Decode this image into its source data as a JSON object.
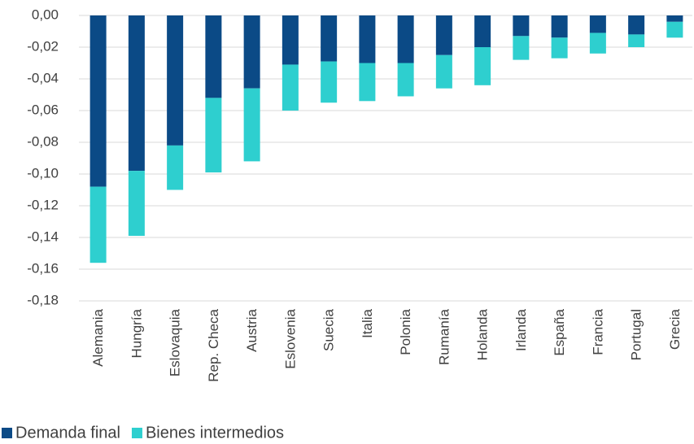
{
  "chart_data": {
    "type": "bar",
    "stacked": true,
    "categories": [
      "Alemania",
      "Hungría",
      "Eslovaquia",
      "Rep. Checa",
      "Austria",
      "Eslovenia",
      "Suecia",
      "Italia",
      "Polonia",
      "Rumanía",
      "Holanda",
      "Irlanda",
      "España",
      "Francia",
      "Portugal",
      "Grecia"
    ],
    "series": [
      {
        "name": "Demanda final",
        "color": "#0b4a86",
        "values": [
          -0.108,
          -0.098,
          -0.082,
          -0.052,
          -0.046,
          -0.031,
          -0.029,
          -0.03,
          -0.03,
          -0.025,
          -0.02,
          -0.013,
          -0.014,
          -0.011,
          -0.012,
          -0.004
        ]
      },
      {
        "name": "Bienes intermedios",
        "color": "#2ecfcf",
        "values": [
          -0.048,
          -0.041,
          -0.028,
          -0.047,
          -0.046,
          -0.029,
          -0.026,
          -0.024,
          -0.021,
          -0.021,
          -0.024,
          -0.015,
          -0.013,
          -0.013,
          -0.008,
          -0.01
        ]
      }
    ],
    "ylim": [
      -0.18,
      0
    ],
    "yticks": [
      {
        "value": 0,
        "label": "0,00"
      },
      {
        "value": -0.02,
        "label": "-0,02"
      },
      {
        "value": -0.04,
        "label": "-0,04"
      },
      {
        "value": -0.06,
        "label": "-0,06"
      },
      {
        "value": -0.08,
        "label": "-0,08"
      },
      {
        "value": -0.1,
        "label": "-0,10"
      },
      {
        "value": -0.12,
        "label": "-0,12"
      },
      {
        "value": -0.14,
        "label": "-0,14"
      },
      {
        "value": -0.16,
        "label": "-0,16"
      },
      {
        "value": -0.18,
        "label": "-0,18"
      }
    ],
    "grid": true,
    "legend": "bottom"
  }
}
